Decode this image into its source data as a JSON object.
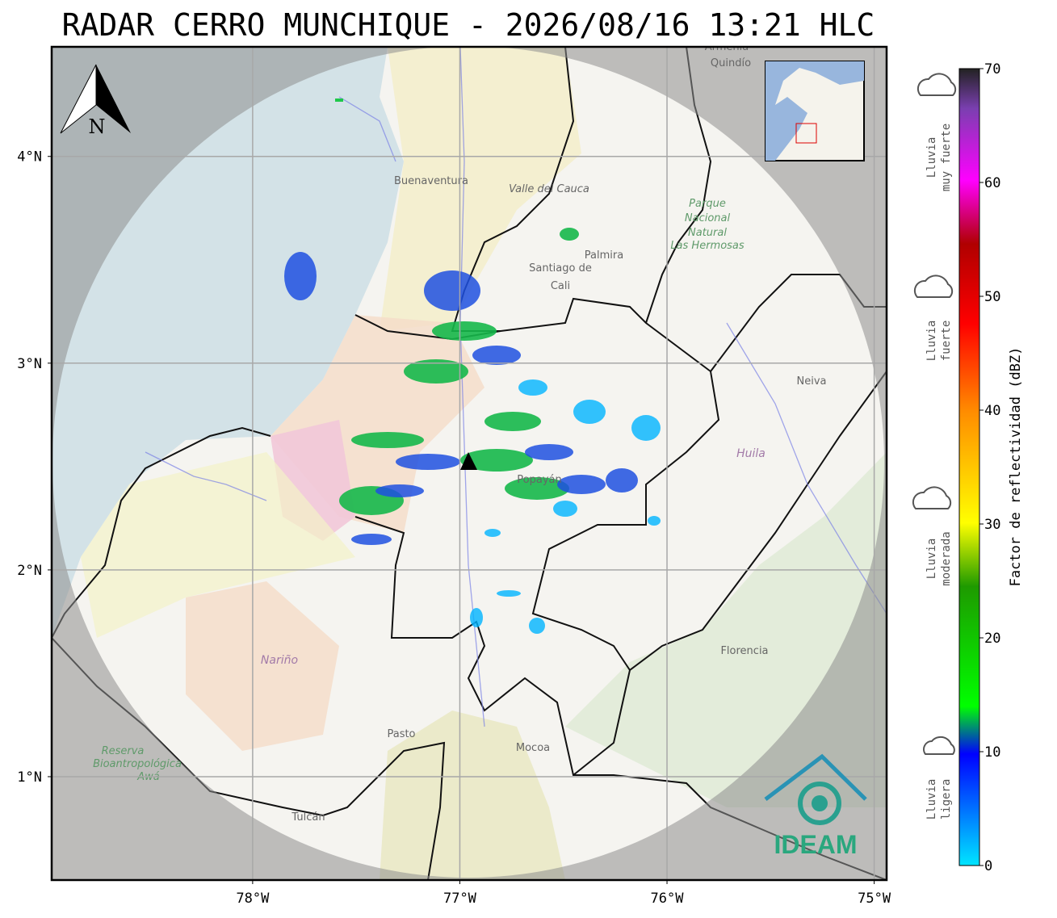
{
  "title": "RADAR CERRO MUNCHIQUE - 2026/08/16 13:21 HLC",
  "map": {
    "lonlim": [
      -78.97,
      -74.94
    ],
    "latlim": [
      0.5,
      4.53
    ],
    "lon_ticks": [
      {
        "value": -78,
        "label": "78°W"
      },
      {
        "value": -77,
        "label": "77°W"
      },
      {
        "value": -76,
        "label": "76°W"
      },
      {
        "value": -75,
        "label": "75°W"
      }
    ],
    "lat_ticks": [
      {
        "value": 4,
        "label": "4°N"
      },
      {
        "value": 3,
        "label": "3°N"
      },
      {
        "value": 2,
        "label": "2°N"
      },
      {
        "value": 1,
        "label": "1°N"
      }
    ],
    "north": "N",
    "places": [
      "Buenaventura",
      "Valle del Cauca",
      "Palmira",
      "Santiago de",
      "Cali",
      "Neiva",
      "Huila",
      "Florencia",
      "Nariño",
      "Pasto",
      "Mocoa",
      "Tulcán",
      "Popayán",
      "Armenia",
      "Quindío"
    ],
    "parks": [
      "Parque",
      "Nacional",
      "Natural",
      "Las Hermosas",
      "Reserva",
      "Bioantropológica",
      "Awá"
    ],
    "logo": "IDEAM"
  },
  "colorbar": {
    "label": "Factor de reflectividad (dBZ)",
    "range": [
      0,
      70
    ],
    "ticks": [
      0,
      10,
      20,
      30,
      40,
      50,
      60,
      70
    ]
  },
  "rain_legend": [
    [
      "Lluvia",
      "muy fuerte"
    ],
    [
      "Lluvia",
      "fuerte"
    ],
    [
      "Lluvia",
      "moderada"
    ],
    [
      "Lluvia",
      "ligera"
    ]
  ]
}
